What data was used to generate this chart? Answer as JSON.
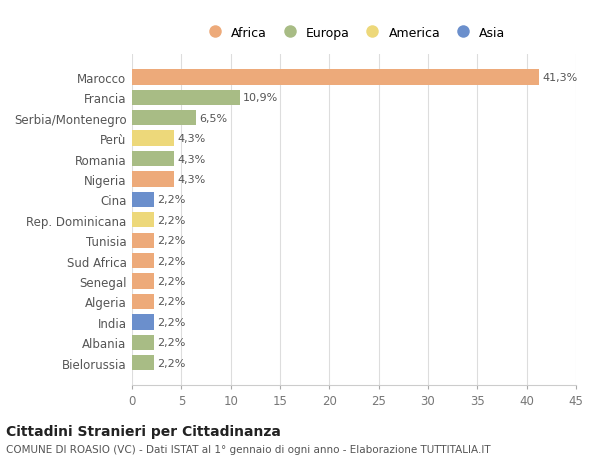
{
  "countries": [
    "Marocco",
    "Francia",
    "Serbia/Montenegro",
    "Perù",
    "Romania",
    "Nigeria",
    "Cina",
    "Rep. Dominicana",
    "Tunisia",
    "Sud Africa",
    "Senegal",
    "Algeria",
    "India",
    "Albania",
    "Bielorussia"
  ],
  "values": [
    41.3,
    10.9,
    6.5,
    4.3,
    4.3,
    4.3,
    2.2,
    2.2,
    2.2,
    2.2,
    2.2,
    2.2,
    2.2,
    2.2,
    2.2
  ],
  "continents": [
    "Africa",
    "Europa",
    "Europa",
    "America",
    "Europa",
    "Africa",
    "Asia",
    "America",
    "Africa",
    "Africa",
    "Africa",
    "Africa",
    "Asia",
    "Europa",
    "Europa"
  ],
  "colors": {
    "Africa": "#EDAA7A",
    "Europa": "#A8BC85",
    "America": "#EDD87A",
    "Asia": "#6B8FCC"
  },
  "legend_order": [
    "Africa",
    "Europa",
    "America",
    "Asia"
  ],
  "title": "Cittadini Stranieri per Cittadinanza",
  "subtitle": "COMUNE DI ROASIO (VC) - Dati ISTAT al 1° gennaio di ogni anno - Elaborazione TUTTITALIA.IT",
  "xlim": [
    0,
    45
  ],
  "xticks": [
    0,
    5,
    10,
    15,
    20,
    25,
    30,
    35,
    40,
    45
  ],
  "bg_color": "#ffffff",
  "plot_bg_color": "#ffffff"
}
